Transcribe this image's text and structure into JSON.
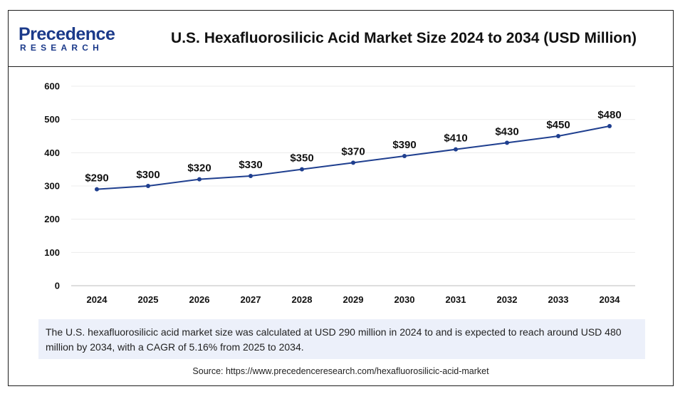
{
  "header": {
    "logo_name": "Precedence",
    "logo_sub": "RESEARCH",
    "title": "U.S. Hexafluorosilicic Acid Market Size 2024 to 2034 (USD Million)"
  },
  "chart_data": {
    "type": "line",
    "title": "U.S. Hexafluorosilicic Acid Market Size 2024 to 2034 (USD Million)",
    "x": [
      "2024",
      "2025",
      "2026",
      "2027",
      "2028",
      "2029",
      "2030",
      "2031",
      "2032",
      "2033",
      "2034"
    ],
    "values": [
      290,
      300,
      320,
      330,
      350,
      370,
      390,
      410,
      430,
      450,
      480
    ],
    "data_labels": [
      "$290",
      "$300",
      "$320",
      "$330",
      "$350",
      "$370",
      "$390",
      "$410",
      "$430",
      "$450",
      "$480"
    ],
    "yticks": [
      "0",
      "100",
      "200",
      "300",
      "400",
      "500",
      "600"
    ],
    "ylim": [
      0,
      600
    ],
    "xlabel": "",
    "ylabel": "",
    "grid": true,
    "legend": "none",
    "line_color": "#1f3f8f"
  },
  "note": "The U.S. hexafluorosilicic acid market size was calculated at USD 290 million in 2024 to and is expected to reach around USD 480 million by 2034, with a CAGR of 5.16% from 2025 to 2034.",
  "source": "Source: https://www.precedenceresearch.com/hexafluorosilicic-acid-market"
}
